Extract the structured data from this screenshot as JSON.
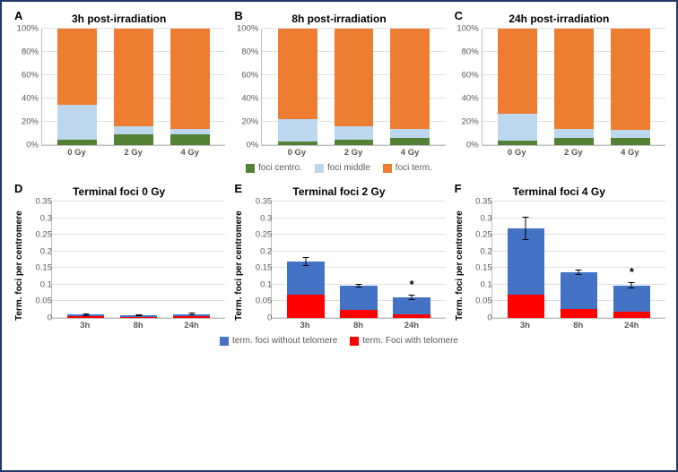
{
  "colors": {
    "centro": "#548235",
    "middle": "#bdd7ee",
    "term": "#ed7d31",
    "without_telomere": "#4472c4",
    "with_telomere": "#ff0000",
    "grid": "#e0e0e0",
    "axis": "#bfbfbf",
    "tick_text": "#595959"
  },
  "legend_top": {
    "centro": "foci centro.",
    "middle": "foci middle",
    "term": "foci term."
  },
  "legend_bottom": {
    "without": "term. foci without telomere",
    "with": "term. Foci with telomere"
  },
  "top_row": {
    "ylabel": "",
    "yticks": [
      "0%",
      "20%",
      "40%",
      "60%",
      "80%",
      "100%"
    ],
    "ylim": [
      0,
      100
    ],
    "categories": [
      "0 Gy",
      "2 Gy",
      "4 Gy"
    ],
    "panels": [
      {
        "id": "A",
        "title": "3h post-irradiation",
        "bars": [
          {
            "centro": 5,
            "middle": 30,
            "term": 65
          },
          {
            "centro": 9,
            "middle": 7,
            "term": 84
          },
          {
            "centro": 9,
            "middle": 5,
            "term": 86
          }
        ]
      },
      {
        "id": "B",
        "title": "8h post-irradiation",
        "bars": [
          {
            "centro": 3,
            "middle": 19,
            "term": 78
          },
          {
            "centro": 5,
            "middle": 11,
            "term": 84
          },
          {
            "centro": 6,
            "middle": 8,
            "term": 86
          }
        ]
      },
      {
        "id": "C",
        "title": "24h post-irradiation",
        "bars": [
          {
            "centro": 4,
            "middle": 23,
            "term": 73
          },
          {
            "centro": 6,
            "middle": 8,
            "term": 86
          },
          {
            "centro": 6,
            "middle": 7,
            "term": 87
          }
        ]
      }
    ]
  },
  "bottom_row": {
    "ylabel": "Term. foci per centromere",
    "yticks": [
      "0",
      "0.05",
      "0.1",
      "0.15",
      "0.2",
      "0.25",
      "0.3",
      "0.35"
    ],
    "ylim": [
      0,
      0.35
    ],
    "categories": [
      "3h",
      "8h",
      "24h"
    ],
    "panels": [
      {
        "id": "D",
        "title": "Terminal foci 0 Gy",
        "bars": [
          {
            "with": 0.005,
            "without": 0.005,
            "err": 0.004,
            "sig": ""
          },
          {
            "with": 0.004,
            "without": 0.004,
            "err": 0.003,
            "sig": ""
          },
          {
            "with": 0.006,
            "without": 0.006,
            "err": 0.004,
            "sig": ""
          }
        ]
      },
      {
        "id": "E",
        "title": "Terminal foci 2 Gy",
        "bars": [
          {
            "with": 0.07,
            "without": 0.1,
            "err": 0.013,
            "sig": ""
          },
          {
            "with": 0.025,
            "without": 0.072,
            "err": 0.006,
            "sig": ""
          },
          {
            "with": 0.012,
            "without": 0.05,
            "err": 0.008,
            "sig": "*"
          }
        ]
      },
      {
        "id": "F",
        "title": "Terminal foci 4 Gy",
        "bars": [
          {
            "with": 0.07,
            "without": 0.2,
            "err": 0.035,
            "sig": ""
          },
          {
            "with": 0.028,
            "without": 0.11,
            "err": 0.008,
            "sig": ""
          },
          {
            "with": 0.018,
            "without": 0.08,
            "err": 0.01,
            "sig": "*"
          }
        ]
      }
    ]
  }
}
